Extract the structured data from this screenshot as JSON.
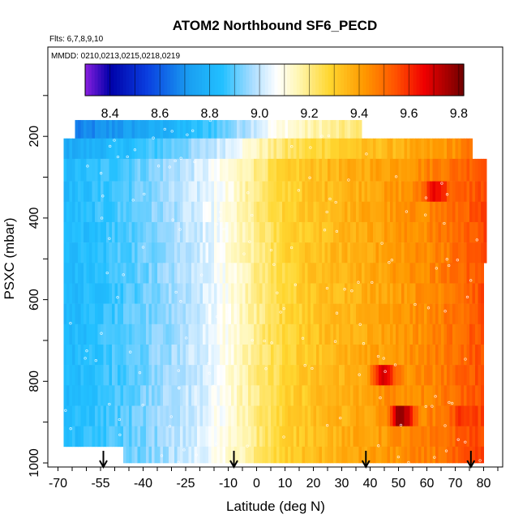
{
  "chart_data": {
    "type": "heatmap",
    "title": "ATOM2 Northbound SF6_PECD",
    "flights_label": "Flts: 6,7,8,9,10",
    "dates_label": "MMDD: 0210,0213,0215,0218,0219",
    "xlabel": "Latitude (deg N)",
    "ylabel": "PSXC (mbar)",
    "x_ticks": [
      "-70",
      "-55",
      "-40",
      "-25",
      "-10",
      "0",
      "10",
      "20",
      "30",
      "40",
      "50",
      "60",
      "70",
      "80"
    ],
    "y_ticks": [
      "200",
      "400",
      "600",
      "800",
      "1000"
    ],
    "xlim": [
      -72,
      82
    ],
    "ylim": [
      1000,
      0
    ],
    "colorbar": {
      "range": [
        8.3,
        9.82
      ],
      "ticks": [
        "8.4",
        "8.6",
        "8.8",
        "9.0",
        "9.2",
        "9.4",
        "9.6",
        "9.8"
      ],
      "stops": [
        [
          8.3,
          "#8a1fe0"
        ],
        [
          8.4,
          "#0000a8"
        ],
        [
          8.55,
          "#0a3fe0"
        ],
        [
          8.72,
          "#1aa0f2"
        ],
        [
          8.85,
          "#22c0ff"
        ],
        [
          8.97,
          "#a8dcff"
        ],
        [
          9.07,
          "#ffffff"
        ],
        [
          9.15,
          "#fff7b8"
        ],
        [
          9.28,
          "#ffd730"
        ],
        [
          9.42,
          "#ff9900"
        ],
        [
          9.55,
          "#ff5000"
        ],
        [
          9.66,
          "#f00000"
        ],
        [
          9.82,
          "#700000"
        ]
      ]
    },
    "pressure_bins": [
      {
        "p": [
          160,
          205
        ],
        "lat": [
          -64,
          37
        ]
      },
      {
        "p": [
          205,
          255
        ],
        "lat": [
          -68,
          76
        ]
      },
      {
        "p": [
          255,
          310
        ],
        "lat": [
          -68,
          81
        ]
      },
      {
        "p": [
          310,
          360
        ],
        "lat": [
          -68,
          81
        ]
      },
      {
        "p": [
          360,
          410
        ],
        "lat": [
          -68,
          81
        ]
      },
      {
        "p": [
          410,
          460
        ],
        "lat": [
          -68,
          81
        ]
      },
      {
        "p": [
          460,
          510
        ],
        "lat": [
          -68,
          81
        ]
      },
      {
        "p": [
          510,
          560
        ],
        "lat": [
          -68,
          80
        ]
      },
      {
        "p": [
          560,
          610
        ],
        "lat": [
          -68,
          80
        ]
      },
      {
        "p": [
          610,
          660
        ],
        "lat": [
          -68,
          80
        ]
      },
      {
        "p": [
          660,
          710
        ],
        "lat": [
          -68,
          80
        ]
      },
      {
        "p": [
          710,
          760
        ],
        "lat": [
          -68,
          80
        ]
      },
      {
        "p": [
          760,
          810
        ],
        "lat": [
          -68,
          80
        ]
      },
      {
        "p": [
          810,
          860
        ],
        "lat": [
          -68,
          80
        ]
      },
      {
        "p": [
          860,
          910
        ],
        "lat": [
          -68,
          80
        ]
      },
      {
        "p": [
          910,
          960
        ],
        "lat": [
          -68,
          80
        ]
      },
      {
        "p": [
          960,
          1000
        ],
        "lat": [
          -47,
          80
        ]
      }
    ],
    "latitude_profile": [
      {
        "lat": -68,
        "value": 8.82
      },
      {
        "lat": -60,
        "value": 8.84
      },
      {
        "lat": -50,
        "value": 8.88
      },
      {
        "lat": -40,
        "value": 8.92
      },
      {
        "lat": -30,
        "value": 8.97
      },
      {
        "lat": -20,
        "value": 9.02
      },
      {
        "lat": -10,
        "value": 9.1
      },
      {
        "lat": 0,
        "value": 9.2
      },
      {
        "lat": 10,
        "value": 9.28
      },
      {
        "lat": 20,
        "value": 9.33
      },
      {
        "lat": 30,
        "value": 9.36
      },
      {
        "lat": 40,
        "value": 9.39
      },
      {
        "lat": 50,
        "value": 9.42
      },
      {
        "lat": 60,
        "value": 9.45
      },
      {
        "lat": 70,
        "value": 9.5
      },
      {
        "lat": 80,
        "value": 9.56
      }
    ],
    "pressure_adjust": [
      {
        "p": 180,
        "delta": -0.18
      },
      {
        "p": 230,
        "delta": -0.06
      },
      {
        "p": 280,
        "delta": 0.0
      },
      {
        "p": 400,
        "delta": 0.0
      },
      {
        "p": 600,
        "delta": -0.01
      },
      {
        "p": 800,
        "delta": 0.0
      },
      {
        "p": 1000,
        "delta": 0.01
      }
    ],
    "hotspots": [
      {
        "lat": 63,
        "p": 330,
        "value": 9.68
      },
      {
        "lat": 51,
        "p": 885,
        "value": 9.78
      },
      {
        "lat": 45,
        "p": 795,
        "value": 9.72
      },
      {
        "lat": 73,
        "p": 900,
        "value": 9.62
      }
    ],
    "arrows_lat": [
      -54,
      -8,
      38.5,
      75.5
    ]
  }
}
